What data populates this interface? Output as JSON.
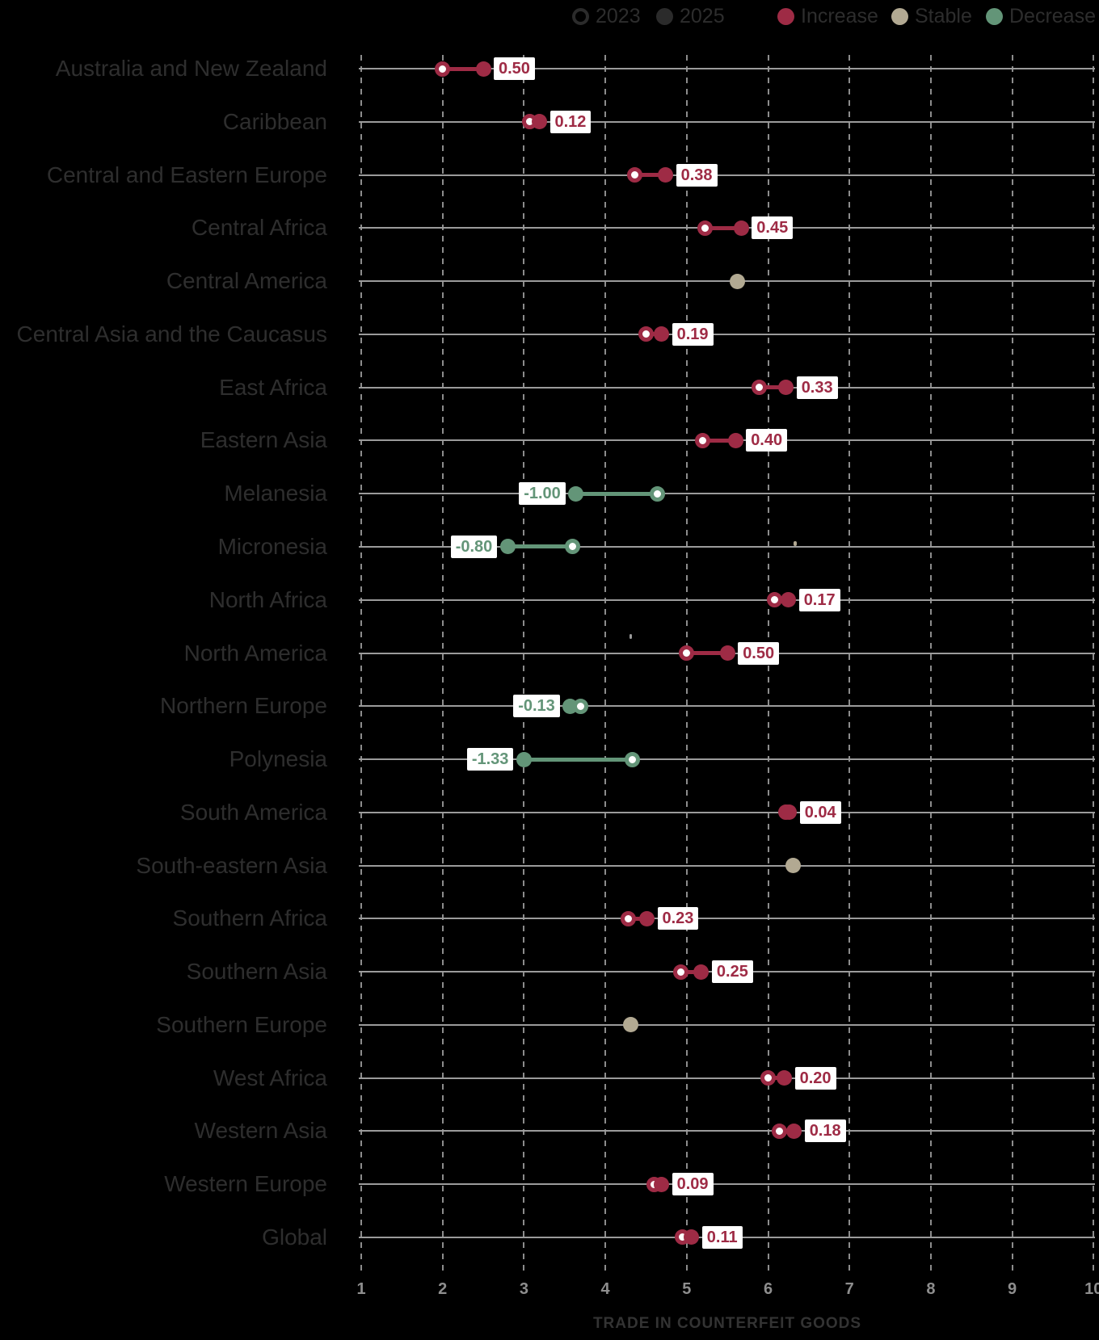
{
  "legend": {
    "y2023_label": "2023",
    "y2025_label": "2025",
    "increase_label": "Increase",
    "stable_label": "Stable",
    "decrease_label": "Decrease"
  },
  "axis": {
    "title": "TRADE IN COUNTERFEIT GOODS",
    "ticks": [
      "1",
      "2",
      "3",
      "4",
      "5",
      "6",
      "7",
      "8",
      "9",
      "10"
    ],
    "min": 1,
    "max": 10
  },
  "colors": {
    "increase": "#9e2b45",
    "stable": "#b2a992",
    "decrease": "#639578",
    "legend_2025_dot": "#2b2b2b",
    "row_line": "#9b9b9b",
    "gridline": "#8c8c8c",
    "tick_text": "#8e8e8e",
    "category_text": "#2e2e2e",
    "axis_title_text": "#333333"
  },
  "chart_data": {
    "type": "dumbbell",
    "series": [
      "2023",
      "2025"
    ],
    "xlabel": "TRADE IN COUNTERFEIT GOODS",
    "xlim": [
      1,
      10
    ],
    "grid": "vertical-dashed",
    "legend_position": "top",
    "rows": [
      {
        "region": "Australia and New Zealand",
        "v2023": 2.0,
        "v2025": 2.5,
        "diff_label": "0.50",
        "status": "increase"
      },
      {
        "region": "Caribbean",
        "v2023": 3.07,
        "v2025": 3.19,
        "diff_label": "0.12",
        "status": "increase"
      },
      {
        "region": "Central and Eastern Europe",
        "v2023": 4.36,
        "v2025": 4.74,
        "diff_label": "0.38",
        "status": "increase"
      },
      {
        "region": "Central Africa",
        "v2023": 5.22,
        "v2025": 5.67,
        "diff_label": "0.45",
        "status": "increase"
      },
      {
        "region": "Central America",
        "v2023": 5.62,
        "v2025": 5.62,
        "diff_label": null,
        "status": "stable"
      },
      {
        "region": "Central Asia and the Caucasus",
        "v2023": 4.5,
        "v2025": 4.69,
        "diff_label": "0.19",
        "status": "increase"
      },
      {
        "region": "East Africa",
        "v2023": 5.89,
        "v2025": 6.22,
        "diff_label": "0.33",
        "status": "increase"
      },
      {
        "region": "Eastern Asia",
        "v2023": 5.2,
        "v2025": 5.6,
        "diff_label": "0.40",
        "status": "increase"
      },
      {
        "region": "Melanesia",
        "v2023": 4.64,
        "v2025": 3.64,
        "diff_label": "-1.00",
        "status": "decrease"
      },
      {
        "region": "Micronesia",
        "v2023": 3.6,
        "v2025": 2.8,
        "diff_label": "-0.80",
        "status": "decrease"
      },
      {
        "region": "North Africa",
        "v2023": 6.08,
        "v2025": 6.25,
        "diff_label": "0.17",
        "status": "increase"
      },
      {
        "region": "North America",
        "v2023": 5.0,
        "v2025": 5.5,
        "diff_label": "0.50",
        "status": "increase"
      },
      {
        "region": "Northern Europe",
        "v2023": 3.7,
        "v2025": 3.57,
        "diff_label": "-0.13",
        "status": "decrease"
      },
      {
        "region": "Polynesia",
        "v2023": 4.33,
        "v2025": 3.0,
        "diff_label": "-1.33",
        "status": "decrease"
      },
      {
        "region": "South America",
        "v2023": 6.22,
        "v2025": 6.26,
        "diff_label": "0.04",
        "status": "increase"
      },
      {
        "region": "South-eastern Asia",
        "v2023": 6.31,
        "v2025": 6.31,
        "diff_label": null,
        "status": "stable"
      },
      {
        "region": "Southern Africa",
        "v2023": 4.28,
        "v2025": 4.51,
        "diff_label": "0.23",
        "status": "increase"
      },
      {
        "region": "Southern Asia",
        "v2023": 4.93,
        "v2025": 5.18,
        "diff_label": "0.25",
        "status": "increase"
      },
      {
        "region": "Southern Europe",
        "v2023": 4.31,
        "v2025": 4.31,
        "diff_label": null,
        "status": "stable"
      },
      {
        "region": "West Africa",
        "v2023": 6.0,
        "v2025": 6.2,
        "diff_label": "0.20",
        "status": "increase"
      },
      {
        "region": "Western Asia",
        "v2023": 6.14,
        "v2025": 6.32,
        "diff_label": "0.18",
        "status": "increase"
      },
      {
        "region": "Western Europe",
        "v2023": 4.6,
        "v2025": 4.69,
        "diff_label": "0.09",
        "status": "increase"
      },
      {
        "region": "Global",
        "v2023": 4.95,
        "v2025": 5.06,
        "diff_label": "0.11",
        "status": "increase"
      }
    ]
  }
}
